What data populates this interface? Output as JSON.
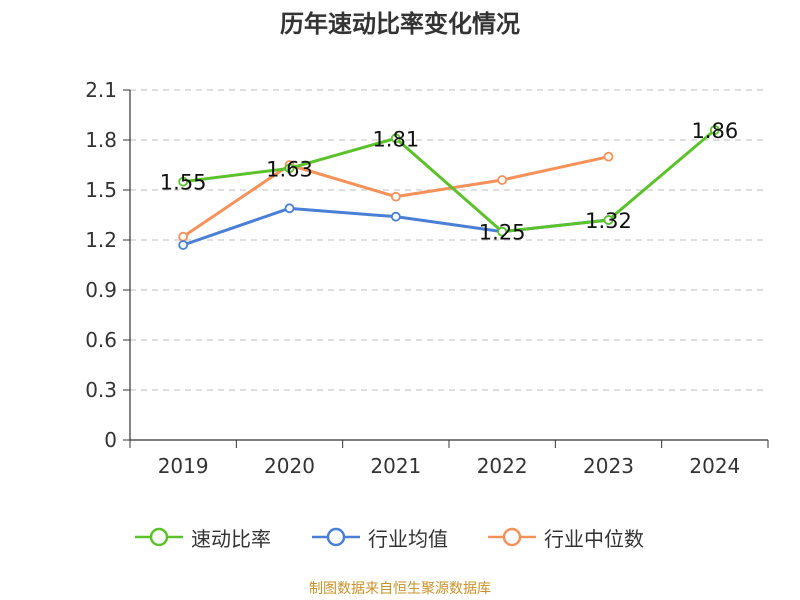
{
  "chart_data": {
    "type": "line",
    "title": "历年速动比率变化情况",
    "categories": [
      "2019",
      "2020",
      "2021",
      "2022",
      "2023",
      "2024"
    ],
    "y_ticks": [
      "0",
      "0.3",
      "0.6",
      "0.9",
      "1.2",
      "1.5",
      "1.8",
      "2.1"
    ],
    "ylim": [
      0,
      2.1
    ],
    "grid": true,
    "legend_position": "bottom",
    "series": [
      {
        "name": "速动比率",
        "color": "#5cc22b",
        "values": [
          1.55,
          1.63,
          1.81,
          1.25,
          1.32,
          1.86
        ],
        "labels": [
          "1.55",
          "1.63",
          "1.81",
          "1.25",
          "1.32",
          "1.86"
        ]
      },
      {
        "name": "行业均值",
        "color": "#4a7fd6",
        "values": [
          1.17,
          1.39,
          1.34,
          1.25,
          1.32,
          null
        ]
      },
      {
        "name": "行业中位数",
        "color": "#f5915a",
        "values": [
          1.22,
          1.65,
          1.46,
          1.56,
          1.7,
          null
        ]
      }
    ]
  },
  "source_text": "制图数据来自恒生聚源数据库"
}
